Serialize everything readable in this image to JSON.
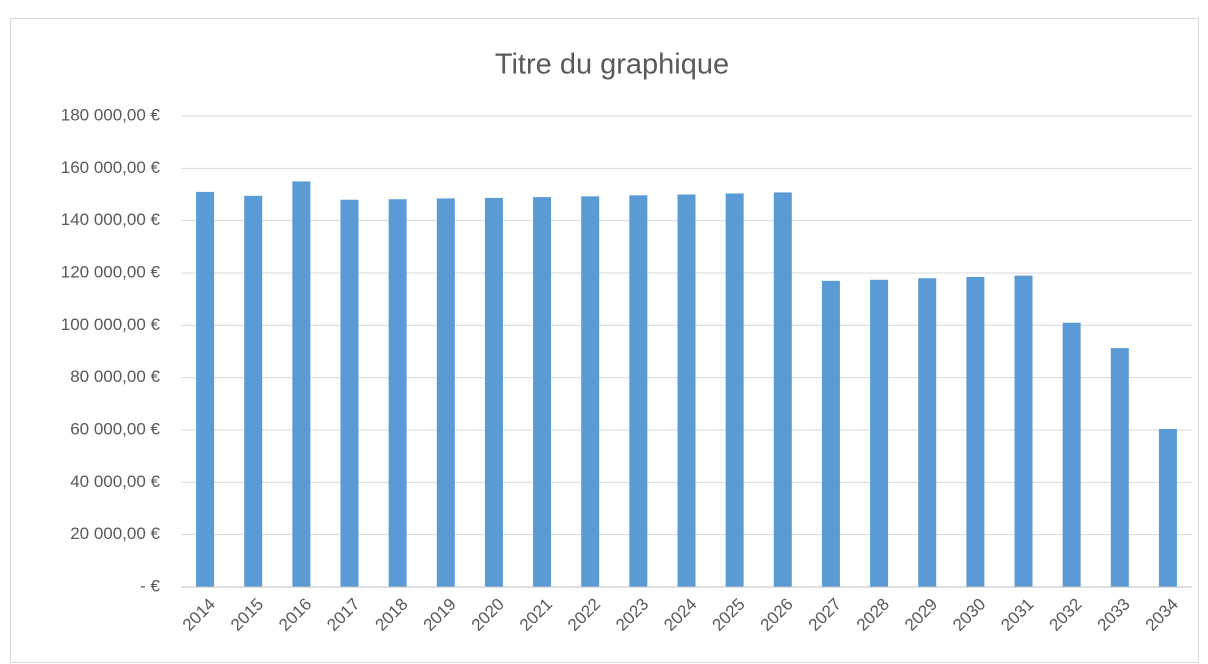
{
  "chart_data": {
    "type": "bar",
    "title": "Titre du graphique",
    "categories": [
      "2014",
      "2015",
      "2016",
      "2017",
      "2018",
      "2019",
      "2020",
      "2021",
      "2022",
      "2023",
      "2024",
      "2025",
      "2026",
      "2027",
      "2028",
      "2029",
      "2030",
      "2031",
      "2032",
      "2033",
      "2034"
    ],
    "values": [
      151000,
      149500,
      155000,
      148000,
      148200,
      148500,
      148700,
      149000,
      149300,
      149700,
      150000,
      150400,
      150800,
      117000,
      117400,
      118000,
      118500,
      119000,
      101000,
      91300,
      60400
    ],
    "color": "#5b9bd5",
    "ylim": [
      0,
      180000
    ],
    "yticks": [
      {
        "value": 0,
        "label": "-   €"
      },
      {
        "value": 20000,
        "label": "20 000,00 €"
      },
      {
        "value": 40000,
        "label": "40 000,00 €"
      },
      {
        "value": 60000,
        "label": "60 000,00 €"
      },
      {
        "value": 80000,
        "label": "80 000,00 €"
      },
      {
        "value": 100000,
        "label": "100 000,00 €"
      },
      {
        "value": 120000,
        "label": "120 000,00 €"
      },
      {
        "value": 140000,
        "label": "140 000,00 €"
      },
      {
        "value": 160000,
        "label": "160 000,00 €"
      },
      {
        "value": 180000,
        "label": "180 000,00 €"
      }
    ],
    "grid": true
  }
}
